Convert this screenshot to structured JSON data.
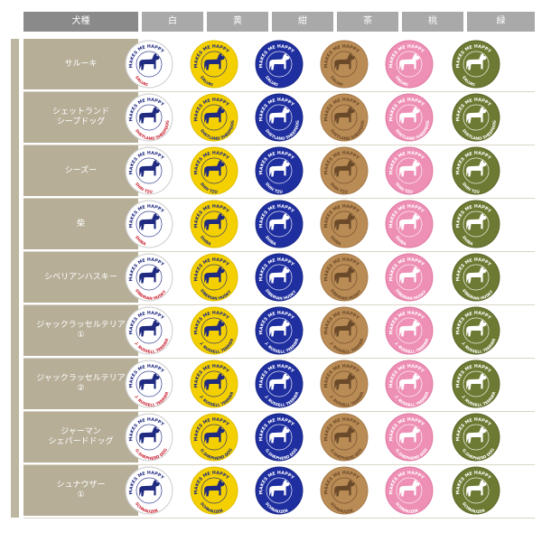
{
  "header": {
    "breed_col": "犬種",
    "colors": [
      "白",
      "黄",
      "紺",
      "茶",
      "桃",
      "緑"
    ]
  },
  "badge_top_text": "MAKES ME HAPPY",
  "badge_colors": [
    {
      "name": "白",
      "fill": "#ffffff",
      "ring": "#1f2a80",
      "dog": "#1f2a80",
      "text": "#1f2a80",
      "name_text": "#cc2233",
      "ring_outer": "#cfcfcf"
    },
    {
      "name": "黄",
      "fill": "#f4d000",
      "ring": "#1f2a80",
      "dog": "#1f2a80",
      "text": "#1f2a80",
      "name_text": "#1f2a80",
      "ring_outer": "#e0c000"
    },
    {
      "name": "紺",
      "fill": "#1f2fa0",
      "ring": "#ffffff",
      "dog": "#ffffff",
      "text": "#ffffff",
      "name_text": "#ffffff",
      "ring_outer": "#1a2888"
    },
    {
      "name": "茶",
      "fill": "#b98b55",
      "ring": "#6b4a2a",
      "dog": "#6b4a2a",
      "text": "#6b4a2a",
      "name_text": "#6b4a2a",
      "ring_outer": "#a87a48"
    },
    {
      "name": "桃",
      "fill": "#ee8fb6",
      "ring": "#ffffff",
      "dog": "#ffffff",
      "text": "#ffffff",
      "name_text": "#ffffff",
      "ring_outer": "#e07aa3"
    },
    {
      "name": "緑",
      "fill": "#6d7a33",
      "ring": "#ffffff",
      "dog": "#ffffff",
      "text": "#ffffff",
      "name_text": "#ffffff",
      "ring_outer": "#5c6828"
    }
  ],
  "breeds": [
    {
      "label": [
        "サルーキ"
      ],
      "badge_name": "SALUKI"
    },
    {
      "label": [
        "シェットランド",
        "シープドッグ"
      ],
      "badge_name": "SHETLAND SHEEPDOG"
    },
    {
      "label": [
        "シーズー"
      ],
      "badge_name": "SHIH TZU"
    },
    {
      "label": [
        "柴"
      ],
      "badge_name": "SHIBA"
    },
    {
      "label": [
        "シベリアンハスキー"
      ],
      "badge_name": "SIBERIAN HUSKY"
    },
    {
      "label": [
        "ジャックラッセルテリア",
        "①"
      ],
      "badge_name": "J. RUSSELL TERRIER"
    },
    {
      "label": [
        "ジャックラッセルテリア",
        "②"
      ],
      "badge_name": "J. RUSSELL TERRIER"
    },
    {
      "label": [
        "ジャーマン",
        "シェパードドッグ"
      ],
      "badge_name": "G.SHEPHERD DOG"
    },
    {
      "label": [
        "シュナウザー",
        "①"
      ],
      "badge_name": "SCHNAUZER"
    }
  ]
}
